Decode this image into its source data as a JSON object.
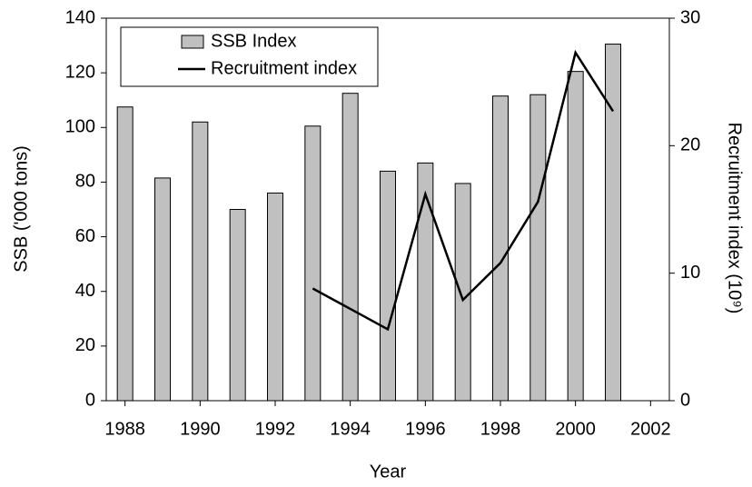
{
  "chart_data": {
    "type": "bar_line",
    "xlabel": "Year",
    "ylabel": "SSB ('000 tons)",
    "y2label": "Recruitment index (10⁹)",
    "x": [
      1988,
      1989,
      1990,
      1991,
      1992,
      1993,
      1994,
      1995,
      1996,
      1997,
      1998,
      1999,
      2000,
      2001
    ],
    "series": [
      {
        "name": "SSB Index",
        "type": "bar",
        "color": "#c0c0c0",
        "axis": "y",
        "values": [
          107.5,
          81.5,
          102,
          70,
          76,
          100.5,
          112.5,
          84,
          87,
          79.5,
          111.5,
          112,
          120.5,
          130.5
        ]
      },
      {
        "name": "Recruitment index",
        "type": "line",
        "color": "#000000",
        "axis": "y2",
        "values": [
          null,
          null,
          null,
          null,
          null,
          8.8,
          7.2,
          5.6,
          16.2,
          7.9,
          10.8,
          15.6,
          27.3,
          22.7
        ]
      }
    ],
    "xlim": [
      1987.5,
      2002.5
    ],
    "xticks": [
      1988,
      1990,
      1992,
      1994,
      1996,
      1998,
      2000,
      2002
    ],
    "ylim": [
      0,
      140
    ],
    "yticks": [
      0,
      20,
      40,
      60,
      80,
      100,
      120,
      140
    ],
    "y2lim": [
      0,
      30
    ],
    "y2ticks": [
      0,
      10,
      20,
      30
    ],
    "legend": "upper left"
  }
}
